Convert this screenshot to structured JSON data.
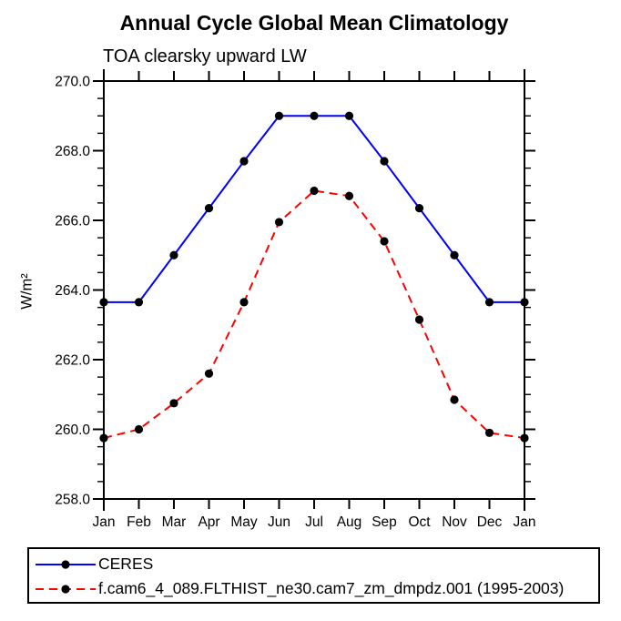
{
  "chart": {
    "title": "Annual Cycle Global Mean Climatology",
    "subtitle": "TOA clearsky upward LW",
    "ylabel": "W/m²"
  },
  "chart_data": {
    "type": "line",
    "title": "Annual Cycle Global Mean Climatology",
    "subtitle": "TOA clearsky upward LW",
    "ylabel": "W/m²",
    "categories": [
      "Jan",
      "Feb",
      "Mar",
      "Apr",
      "May",
      "Jun",
      "Jul",
      "Aug",
      "Sep",
      "Oct",
      "Nov",
      "Dec",
      "Jan"
    ],
    "series": [
      {
        "name": "CERES",
        "color": "#0000ff",
        "line_style": "solid",
        "marker": "filled-circle",
        "marker_color": "#000000",
        "values": [
          263.65,
          263.65,
          265.0,
          266.35,
          267.7,
          269.0,
          269.0,
          269.0,
          267.7,
          266.35,
          265.0,
          263.65,
          263.65
        ]
      },
      {
        "name": "f.cam6_4_089.FLTHIST_ne30.cam7_zm_dmpdz.001 (1995-2003)",
        "color": "#ff0000",
        "line_style": "dashed",
        "marker": "filled-circle",
        "marker_color": "#000000",
        "values": [
          259.75,
          260.0,
          260.75,
          261.6,
          263.65,
          265.95,
          266.85,
          266.7,
          265.4,
          263.15,
          260.85,
          259.9,
          259.75
        ]
      }
    ],
    "ylim": [
      258.0,
      270.0
    ],
    "yticks": [
      258.0,
      260.0,
      262.0,
      264.0,
      266.0,
      268.0,
      270.0
    ],
    "ytick_labels": [
      "258.0",
      "260.0",
      "262.0",
      "264.0",
      "266.0",
      "268.0",
      "270.0"
    ],
    "y_minor_interval": 0.5,
    "grid": false,
    "axis_color": "#000000",
    "legend_position": "bottom-box"
  },
  "legend": {
    "items": [
      {
        "label": "CERES",
        "color": "#0000ff",
        "style": "solid"
      },
      {
        "label": "f.cam6_4_089.FLTHIST_ne30.cam7_zm_dmpdz.001 (1995-2003)",
        "color": "#ff0000",
        "style": "dashed"
      }
    ]
  }
}
